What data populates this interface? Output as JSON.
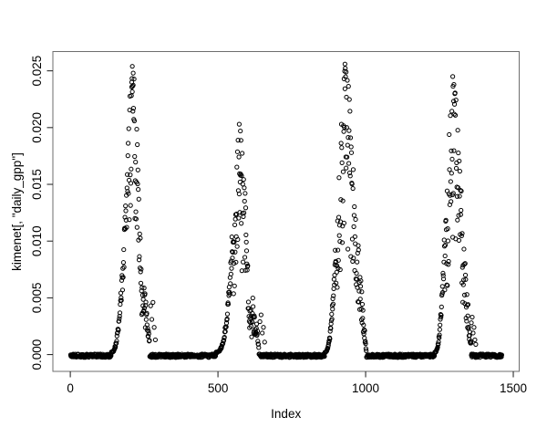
{
  "figure": {
    "background": "#ffffff",
    "plot_background": "#ffffff",
    "box_color": "#6e6e6e",
    "tick_color": "#1a1a1a",
    "text_color": "#000000"
  },
  "chart_data": {
    "type": "scatter",
    "title": "",
    "xlabel": "Index",
    "ylabel": "kimenet[, \"daily_gpp\"]",
    "marker": "open-circle",
    "point_color": "#000000",
    "n_points": 1461,
    "x_range": [
      1,
      1461
    ],
    "y_range": [
      0,
      0.0257
    ],
    "xlim": [
      -59,
      1520
    ],
    "ylim": [
      -0.00148,
      0.0267
    ],
    "grid": false,
    "legend": null,
    "x_ticks": {
      "values": [
        0,
        500,
        1000,
        1500
      ],
      "labels": [
        "0",
        "500",
        "1000",
        "1500"
      ]
    },
    "y_ticks": {
      "values": [
        0,
        0.005,
        0.01,
        0.015,
        0.02,
        0.025
      ],
      "labels": [
        "0.000",
        "0.005",
        "0.010",
        "0.015",
        "0.020",
        "0.025"
      ]
    },
    "peaks": [
      {
        "apex_index": 212,
        "apex_value": 0.0256,
        "rise_start": 139,
        "fall_end": 268
      },
      {
        "apex_index": 574,
        "apex_value": 0.0205,
        "rise_start": 493,
        "fall_end": 638
      },
      {
        "apex_index": 932,
        "apex_value": 0.0257,
        "rise_start": 862,
        "fall_end": 1002
      },
      {
        "apex_index": 1297,
        "apex_value": 0.0246,
        "rise_start": 1234,
        "fall_end": 1357
      }
    ],
    "segments": [
      {
        "type": "flat",
        "from": 1,
        "to": 138
      },
      {
        "type": "rise",
        "from": 139,
        "to": 188,
        "v0": 0.0002,
        "v1": 0.0125,
        "pow": 2.4,
        "noise": 0.18
      },
      {
        "type": "bloom",
        "from": 189,
        "to": 246,
        "apex": 212,
        "max": 0.0256,
        "sigL": 30,
        "sigR": 27,
        "minF": 0.42
      },
      {
        "type": "fall",
        "from": 247,
        "to": 268,
        "v0": 0.0052,
        "v1": 0.001,
        "noise": 0.4
      },
      {
        "type": "flat",
        "from": 269,
        "to": 492
      },
      {
        "type": "rise",
        "from": 493,
        "to": 549,
        "v0": 0.0002,
        "v1": 0.01,
        "pow": 2.8,
        "noise": 0.15
      },
      {
        "type": "bloom",
        "from": 550,
        "to": 616,
        "apex": 574,
        "max": 0.0205,
        "sigL": 28,
        "sigR": 30,
        "minF": 0.36
      },
      {
        "type": "fall",
        "from": 617,
        "to": 638,
        "v0": 0.0038,
        "v1": 0.001,
        "noise": 0.45
      },
      {
        "type": "flat",
        "from": 639,
        "to": 861
      },
      {
        "type": "rise",
        "from": 862,
        "to": 899,
        "v0": 0.0002,
        "v1": 0.0095,
        "pow": 2.4,
        "noise": 0.15
      },
      {
        "type": "bloom",
        "from": 900,
        "to": 974,
        "apex": 932,
        "max": 0.0257,
        "sigL": 32,
        "sigR": 40,
        "minF": 0.32
      },
      {
        "type": "fall",
        "from": 975,
        "to": 1002,
        "v0": 0.0072,
        "v1": 0.0004,
        "noise": 0.35
      },
      {
        "type": "flat",
        "from": 1003,
        "to": 1233
      },
      {
        "type": "rise",
        "from": 1234,
        "to": 1267,
        "v0": 0.0002,
        "v1": 0.0098,
        "pow": 2.4,
        "noise": 0.15
      },
      {
        "type": "bloom",
        "from": 1268,
        "to": 1344,
        "apex": 1297,
        "max": 0.0246,
        "sigL": 33,
        "sigR": 38,
        "minF": 0.34
      },
      {
        "type": "fall",
        "from": 1345,
        "to": 1357,
        "v0": 0.0036,
        "v1": 0.0008,
        "noise": 0.45
      },
      {
        "type": "flat",
        "from": 1358,
        "to": 1461
      }
    ],
    "extra_points": [
      [
        210,
        0.0254
      ],
      [
        213,
        0.0248
      ],
      [
        208,
        0.024
      ],
      [
        572,
        0.0203
      ],
      [
        576,
        0.0197
      ],
      [
        930,
        0.0256
      ],
      [
        934,
        0.0249
      ],
      [
        927,
        0.0243
      ],
      [
        1295,
        0.0245
      ],
      [
        1299,
        0.0238
      ],
      [
        272,
        0.0043
      ],
      [
        276,
        0.0031
      ],
      [
        280,
        0.0046
      ],
      [
        284,
        0.0024
      ],
      [
        288,
        0.0013
      ],
      [
        642,
        0.0029
      ],
      [
        646,
        0.0035
      ],
      [
        650,
        0.0019
      ],
      [
        654,
        0.0024
      ],
      [
        658,
        0.0011
      ],
      [
        1358,
        0.0028
      ],
      [
        1361,
        0.0033
      ],
      [
        1364,
        0.0019
      ],
      [
        1367,
        0.0024
      ],
      [
        1370,
        0.0013
      ],
      [
        1373,
        0.0009
      ]
    ]
  }
}
